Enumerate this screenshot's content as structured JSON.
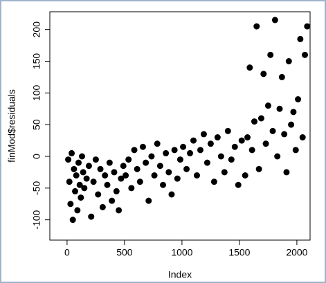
{
  "chart_data": {
    "type": "scatter",
    "x_label": "Index",
    "y_label": "finMod$residuals",
    "x": [
      10,
      20,
      30,
      40,
      50,
      60,
      70,
      80,
      90,
      100,
      110,
      120,
      130,
      140,
      150,
      170,
      190,
      210,
      230,
      250,
      270,
      290,
      310,
      330,
      350,
      370,
      390,
      410,
      430,
      450,
      470,
      490,
      510,
      535,
      560,
      585,
      610,
      635,
      660,
      685,
      710,
      735,
      760,
      785,
      810,
      835,
      860,
      885,
      910,
      935,
      960,
      985,
      1010,
      1040,
      1070,
      1100,
      1130,
      1160,
      1190,
      1220,
      1250,
      1280,
      1310,
      1340,
      1370,
      1400,
      1430,
      1460,
      1490,
      1520,
      1550,
      1570,
      1590,
      1610,
      1630,
      1650,
      1670,
      1690,
      1710,
      1730,
      1750,
      1770,
      1790,
      1810,
      1830,
      1850,
      1870,
      1890,
      1910,
      1930,
      1950,
      1970,
      1990,
      2010,
      2030,
      2050,
      2070,
      2090
    ],
    "values": [
      -5,
      -40,
      -75,
      5,
      -100,
      -20,
      -55,
      -30,
      -85,
      -10,
      -45,
      -65,
      0,
      -25,
      -50,
      -35,
      -15,
      -95,
      -40,
      -5,
      -60,
      -20,
      -80,
      -30,
      -45,
      -10,
      -70,
      -25,
      -55,
      -85,
      -35,
      -15,
      -30,
      -5,
      -50,
      10,
      -20,
      -40,
      15,
      -10,
      -70,
      0,
      -30,
      20,
      -15,
      -45,
      5,
      -25,
      -60,
      10,
      -35,
      -5,
      15,
      -20,
      5,
      25,
      -30,
      10,
      35,
      -10,
      20,
      -40,
      30,
      0,
      -25,
      40,
      -5,
      15,
      -45,
      25,
      -30,
      30,
      140,
      10,
      55,
      205,
      -20,
      60,
      130,
      20,
      80,
      160,
      40,
      215,
      0,
      75,
      125,
      35,
      -25,
      150,
      50,
      70,
      10,
      90,
      185,
      30,
      160,
      205
    ],
    "color": "#000000",
    "xlim": [
      -150,
      2115
    ],
    "ylim": [
      -132,
      228
    ],
    "xticks": [
      0,
      500,
      1000,
      1500,
      2000
    ],
    "yticks": [
      -100,
      -50,
      0,
      50,
      100,
      150,
      200
    ]
  }
}
